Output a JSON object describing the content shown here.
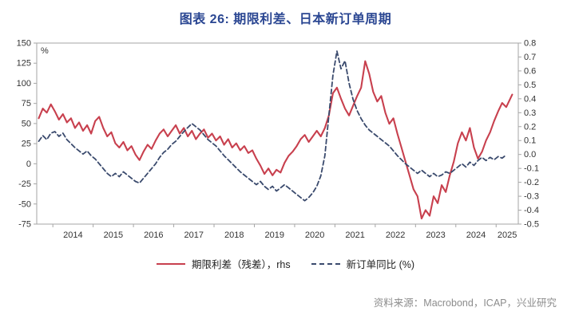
{
  "page": {
    "title": "图表 26: 期限利差、日本新订单周期",
    "title_color": "#2A4692",
    "source": "资料来源：Macrobond，ICAP，兴业研究"
  },
  "chart_data": {
    "type": "line",
    "title": "图表 26: 期限利差、日本新订单周期",
    "xlabel": "",
    "ylabel_left": "%",
    "grid": false,
    "legend_position": "bottom",
    "x_range": [
      2013.6,
      2025.55
    ],
    "x_ticks": [
      2014,
      2015,
      2016,
      2017,
      2018,
      2019,
      2020,
      2021,
      2022,
      2023,
      2024,
      2025
    ],
    "left_axis": {
      "min": -75,
      "max": 150,
      "step": 25,
      "decimals": 0,
      "unit": "%"
    },
    "right_axis": {
      "min": -0.5,
      "max": 0.8,
      "step": 0.1,
      "decimals": 1,
      "unit": ""
    },
    "axis_color": "#a6a6a6",
    "series": [
      {
        "name": "期限利差（残差），rhs",
        "axis": "right",
        "style": "solid",
        "color": "#C8404E",
        "points": [
          [
            2013.65,
            0.26
          ],
          [
            2013.75,
            0.33
          ],
          [
            2013.85,
            0.3
          ],
          [
            2013.95,
            0.36
          ],
          [
            2014.05,
            0.31
          ],
          [
            2014.15,
            0.25
          ],
          [
            2014.25,
            0.29
          ],
          [
            2014.35,
            0.23
          ],
          [
            2014.45,
            0.26
          ],
          [
            2014.55,
            0.19
          ],
          [
            2014.65,
            0.23
          ],
          [
            2014.75,
            0.17
          ],
          [
            2014.85,
            0.21
          ],
          [
            2014.95,
            0.15
          ],
          [
            2015.05,
            0.24
          ],
          [
            2015.15,
            0.27
          ],
          [
            2015.25,
            0.19
          ],
          [
            2015.35,
            0.13
          ],
          [
            2015.45,
            0.16
          ],
          [
            2015.55,
            0.08
          ],
          [
            2015.65,
            0.05
          ],
          [
            2015.75,
            0.09
          ],
          [
            2015.85,
            0.03
          ],
          [
            2015.95,
            0.06
          ],
          [
            2016.05,
            0
          ],
          [
            2016.15,
            -0.04
          ],
          [
            2016.25,
            0.02
          ],
          [
            2016.35,
            0.07
          ],
          [
            2016.45,
            0.04
          ],
          [
            2016.55,
            0.1
          ],
          [
            2016.65,
            0.15
          ],
          [
            2016.75,
            0.18
          ],
          [
            2016.85,
            0.13
          ],
          [
            2016.95,
            0.17
          ],
          [
            2017.05,
            0.21
          ],
          [
            2017.15,
            0.15
          ],
          [
            2017.25,
            0.19
          ],
          [
            2017.35,
            0.13
          ],
          [
            2017.45,
            0.17
          ],
          [
            2017.55,
            0.11
          ],
          [
            2017.65,
            0.15
          ],
          [
            2017.75,
            0.18
          ],
          [
            2017.85,
            0.12
          ],
          [
            2017.95,
            0.15
          ],
          [
            2018.05,
            0.1
          ],
          [
            2018.15,
            0.13
          ],
          [
            2018.25,
            0.07
          ],
          [
            2018.35,
            0.11
          ],
          [
            2018.45,
            0.05
          ],
          [
            2018.55,
            0.08
          ],
          [
            2018.65,
            0.03
          ],
          [
            2018.75,
            0.06
          ],
          [
            2018.85,
            0.01
          ],
          [
            2018.95,
            0.03
          ],
          [
            2019.05,
            -0.03
          ],
          [
            2019.15,
            -0.08
          ],
          [
            2019.25,
            -0.14
          ],
          [
            2019.35,
            -0.1
          ],
          [
            2019.45,
            -0.15
          ],
          [
            2019.55,
            -0.11
          ],
          [
            2019.65,
            -0.13
          ],
          [
            2019.75,
            -0.06
          ],
          [
            2019.85,
            -0.01
          ],
          [
            2019.95,
            0.02
          ],
          [
            2020.05,
            0.06
          ],
          [
            2020.15,
            0.11
          ],
          [
            2020.25,
            0.14
          ],
          [
            2020.35,
            0.09
          ],
          [
            2020.45,
            0.13
          ],
          [
            2020.55,
            0.17
          ],
          [
            2020.65,
            0.13
          ],
          [
            2020.75,
            0.19
          ],
          [
            2020.85,
            0.28
          ],
          [
            2020.95,
            0.44
          ],
          [
            2021.05,
            0.48
          ],
          [
            2021.15,
            0.4
          ],
          [
            2021.25,
            0.33
          ],
          [
            2021.35,
            0.28
          ],
          [
            2021.45,
            0.35
          ],
          [
            2021.55,
            0.42
          ],
          [
            2021.65,
            0.48
          ],
          [
            2021.75,
            0.67
          ],
          [
            2021.85,
            0.58
          ],
          [
            2021.95,
            0.45
          ],
          [
            2022.05,
            0.38
          ],
          [
            2022.15,
            0.42
          ],
          [
            2022.25,
            0.3
          ],
          [
            2022.35,
            0.22
          ],
          [
            2022.45,
            0.26
          ],
          [
            2022.55,
            0.15
          ],
          [
            2022.65,
            0.05
          ],
          [
            2022.75,
            -0.05
          ],
          [
            2022.85,
            -0.15
          ],
          [
            2022.95,
            -0.25
          ],
          [
            2023.05,
            -0.3
          ],
          [
            2023.15,
            -0.46
          ],
          [
            2023.25,
            -0.4
          ],
          [
            2023.35,
            -0.44
          ],
          [
            2023.45,
            -0.3
          ],
          [
            2023.55,
            -0.35
          ],
          [
            2023.65,
            -0.22
          ],
          [
            2023.75,
            -0.27
          ],
          [
            2023.85,
            -0.15
          ],
          [
            2023.95,
            -0.05
          ],
          [
            2024.05,
            0.08
          ],
          [
            2024.15,
            0.16
          ],
          [
            2024.25,
            0.1
          ],
          [
            2024.35,
            0.19
          ],
          [
            2024.45,
            0.05
          ],
          [
            2024.55,
            -0.03
          ],
          [
            2024.65,
            0.02
          ],
          [
            2024.75,
            0.1
          ],
          [
            2024.85,
            0.16
          ],
          [
            2024.95,
            0.24
          ],
          [
            2025.05,
            0.31
          ],
          [
            2025.15,
            0.37
          ],
          [
            2025.25,
            0.34
          ],
          [
            2025.4,
            0.43
          ]
        ]
      },
      {
        "name": "新订单同比 (%)",
        "axis": "left",
        "style": "dashed",
        "color": "#3A4A6D",
        "points": [
          [
            2013.65,
            28
          ],
          [
            2013.75,
            35
          ],
          [
            2013.85,
            30
          ],
          [
            2013.95,
            38
          ],
          [
            2014.05,
            40
          ],
          [
            2014.15,
            34
          ],
          [
            2014.25,
            38
          ],
          [
            2014.35,
            30
          ],
          [
            2014.45,
            25
          ],
          [
            2014.55,
            20
          ],
          [
            2014.65,
            16
          ],
          [
            2014.75,
            12
          ],
          [
            2014.85,
            16
          ],
          [
            2014.95,
            10
          ],
          [
            2015.05,
            6
          ],
          [
            2015.15,
            0
          ],
          [
            2015.25,
            -6
          ],
          [
            2015.35,
            -12
          ],
          [
            2015.45,
            -16
          ],
          [
            2015.55,
            -12
          ],
          [
            2015.65,
            -16
          ],
          [
            2015.75,
            -10
          ],
          [
            2015.85,
            -14
          ],
          [
            2015.95,
            -18
          ],
          [
            2016.05,
            -22
          ],
          [
            2016.15,
            -24
          ],
          [
            2016.25,
            -18
          ],
          [
            2016.35,
            -12
          ],
          [
            2016.45,
            -6
          ],
          [
            2016.55,
            0
          ],
          [
            2016.65,
            8
          ],
          [
            2016.75,
            14
          ],
          [
            2016.85,
            18
          ],
          [
            2016.95,
            24
          ],
          [
            2017.05,
            28
          ],
          [
            2017.15,
            34
          ],
          [
            2017.25,
            40
          ],
          [
            2017.35,
            45
          ],
          [
            2017.45,
            50
          ],
          [
            2017.55,
            46
          ],
          [
            2017.65,
            42
          ],
          [
            2017.75,
            36
          ],
          [
            2017.85,
            30
          ],
          [
            2017.95,
            26
          ],
          [
            2018.05,
            22
          ],
          [
            2018.15,
            16
          ],
          [
            2018.25,
            10
          ],
          [
            2018.35,
            5
          ],
          [
            2018.45,
            0
          ],
          [
            2018.55,
            -5
          ],
          [
            2018.65,
            -10
          ],
          [
            2018.75,
            -14
          ],
          [
            2018.85,
            -18
          ],
          [
            2018.95,
            -22
          ],
          [
            2019.05,
            -26
          ],
          [
            2019.15,
            -22
          ],
          [
            2019.25,
            -28
          ],
          [
            2019.35,
            -32
          ],
          [
            2019.45,
            -28
          ],
          [
            2019.55,
            -34
          ],
          [
            2019.65,
            -30
          ],
          [
            2019.75,
            -26
          ],
          [
            2019.85,
            -30
          ],
          [
            2019.95,
            -34
          ],
          [
            2020.05,
            -38
          ],
          [
            2020.15,
            -42
          ],
          [
            2020.25,
            -46
          ],
          [
            2020.35,
            -42
          ],
          [
            2020.45,
            -36
          ],
          [
            2020.55,
            -28
          ],
          [
            2020.65,
            -15
          ],
          [
            2020.75,
            10
          ],
          [
            2020.85,
            60
          ],
          [
            2020.95,
            110
          ],
          [
            2021.05,
            140
          ],
          [
            2021.15,
            118
          ],
          [
            2021.25,
            128
          ],
          [
            2021.35,
            100
          ],
          [
            2021.45,
            80
          ],
          [
            2021.55,
            66
          ],
          [
            2021.65,
            56
          ],
          [
            2021.75,
            48
          ],
          [
            2021.85,
            42
          ],
          [
            2021.95,
            38
          ],
          [
            2022.05,
            34
          ],
          [
            2022.15,
            30
          ],
          [
            2022.25,
            26
          ],
          [
            2022.35,
            22
          ],
          [
            2022.45,
            16
          ],
          [
            2022.55,
            10
          ],
          [
            2022.65,
            5
          ],
          [
            2022.75,
            0
          ],
          [
            2022.85,
            -4
          ],
          [
            2022.95,
            -8
          ],
          [
            2023.05,
            -12
          ],
          [
            2023.15,
            -8
          ],
          [
            2023.25,
            -12
          ],
          [
            2023.35,
            -16
          ],
          [
            2023.45,
            -12
          ],
          [
            2023.55,
            -16
          ],
          [
            2023.65,
            -14
          ],
          [
            2023.75,
            -10
          ],
          [
            2023.85,
            -12
          ],
          [
            2023.95,
            -8
          ],
          [
            2024.05,
            -4
          ],
          [
            2024.15,
            0
          ],
          [
            2024.25,
            -4
          ],
          [
            2024.35,
            2
          ],
          [
            2024.45,
            -2
          ],
          [
            2024.55,
            4
          ],
          [
            2024.65,
            8
          ],
          [
            2024.75,
            4
          ],
          [
            2024.85,
            8
          ],
          [
            2024.95,
            5
          ],
          [
            2025.05,
            9
          ],
          [
            2025.15,
            7
          ],
          [
            2025.25,
            11
          ]
        ]
      }
    ]
  }
}
